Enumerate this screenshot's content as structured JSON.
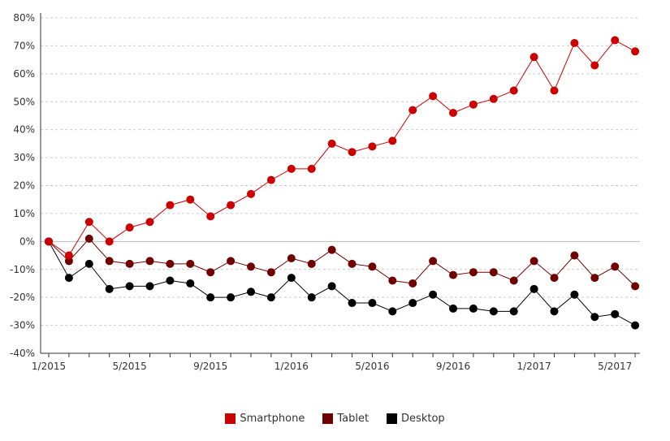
{
  "chart_data": {
    "type": "line",
    "title": "",
    "xlabel": "",
    "ylabel": "",
    "ylim": [
      -40,
      80
    ],
    "y_ticks": [
      "80%",
      "70%",
      "60%",
      "50%",
      "40%",
      "30%",
      "20%",
      "10%",
      "0%",
      "-10%",
      "-20%",
      "-30%",
      "-40%"
    ],
    "x_ticks": [
      "1/2015",
      "5/2015",
      "9/2015",
      "1/2016",
      "5/2016",
      "9/2016",
      "1/2017",
      "5/2017"
    ],
    "grid": "horizontal dashed",
    "legend_position": "bottom-center",
    "x": [
      "1/2015",
      "2/2015",
      "3/2015",
      "4/2015",
      "5/2015",
      "6/2015",
      "7/2015",
      "8/2015",
      "9/2015",
      "10/2015",
      "11/2015",
      "12/2015",
      "1/2016",
      "2/2016",
      "3/2016",
      "4/2016",
      "5/2016",
      "6/2016",
      "7/2016",
      "8/2016",
      "9/2016",
      "10/2016",
      "11/2016",
      "12/2016",
      "1/2017",
      "2/2017",
      "3/2017",
      "4/2017",
      "5/2017",
      "6/2017"
    ],
    "series": [
      {
        "name": "Smartphone",
        "color": "#cc0000",
        "values": [
          0,
          -5,
          7,
          0,
          5,
          7,
          13,
          15,
          9,
          13,
          17,
          22,
          26,
          26,
          35,
          32,
          34,
          36,
          47,
          52,
          46,
          49,
          51,
          54,
          66,
          54,
          71,
          63,
          72,
          68
        ]
      },
      {
        "name": "Tablet",
        "color": "#700000",
        "values": [
          0,
          -7,
          1,
          -7,
          -8,
          -7,
          -8,
          -8,
          -11,
          -7,
          -9,
          -11,
          -6,
          -8,
          -3,
          -8,
          -9,
          -14,
          -15,
          -7,
          -12,
          -11,
          -11,
          -14,
          -7,
          -13,
          -5,
          -13,
          -9,
          -16
        ]
      },
      {
        "name": "Desktop",
        "color": "#000000",
        "values": [
          0,
          -13,
          -8,
          -17,
          -16,
          -16,
          -14,
          -15,
          -20,
          -20,
          -18,
          -20,
          -13,
          -20,
          -16,
          -22,
          -22,
          -25,
          -22,
          -19,
          -24,
          -24,
          -25,
          -25,
          -17,
          -25,
          -19,
          -27,
          -26,
          -30
        ]
      }
    ]
  }
}
